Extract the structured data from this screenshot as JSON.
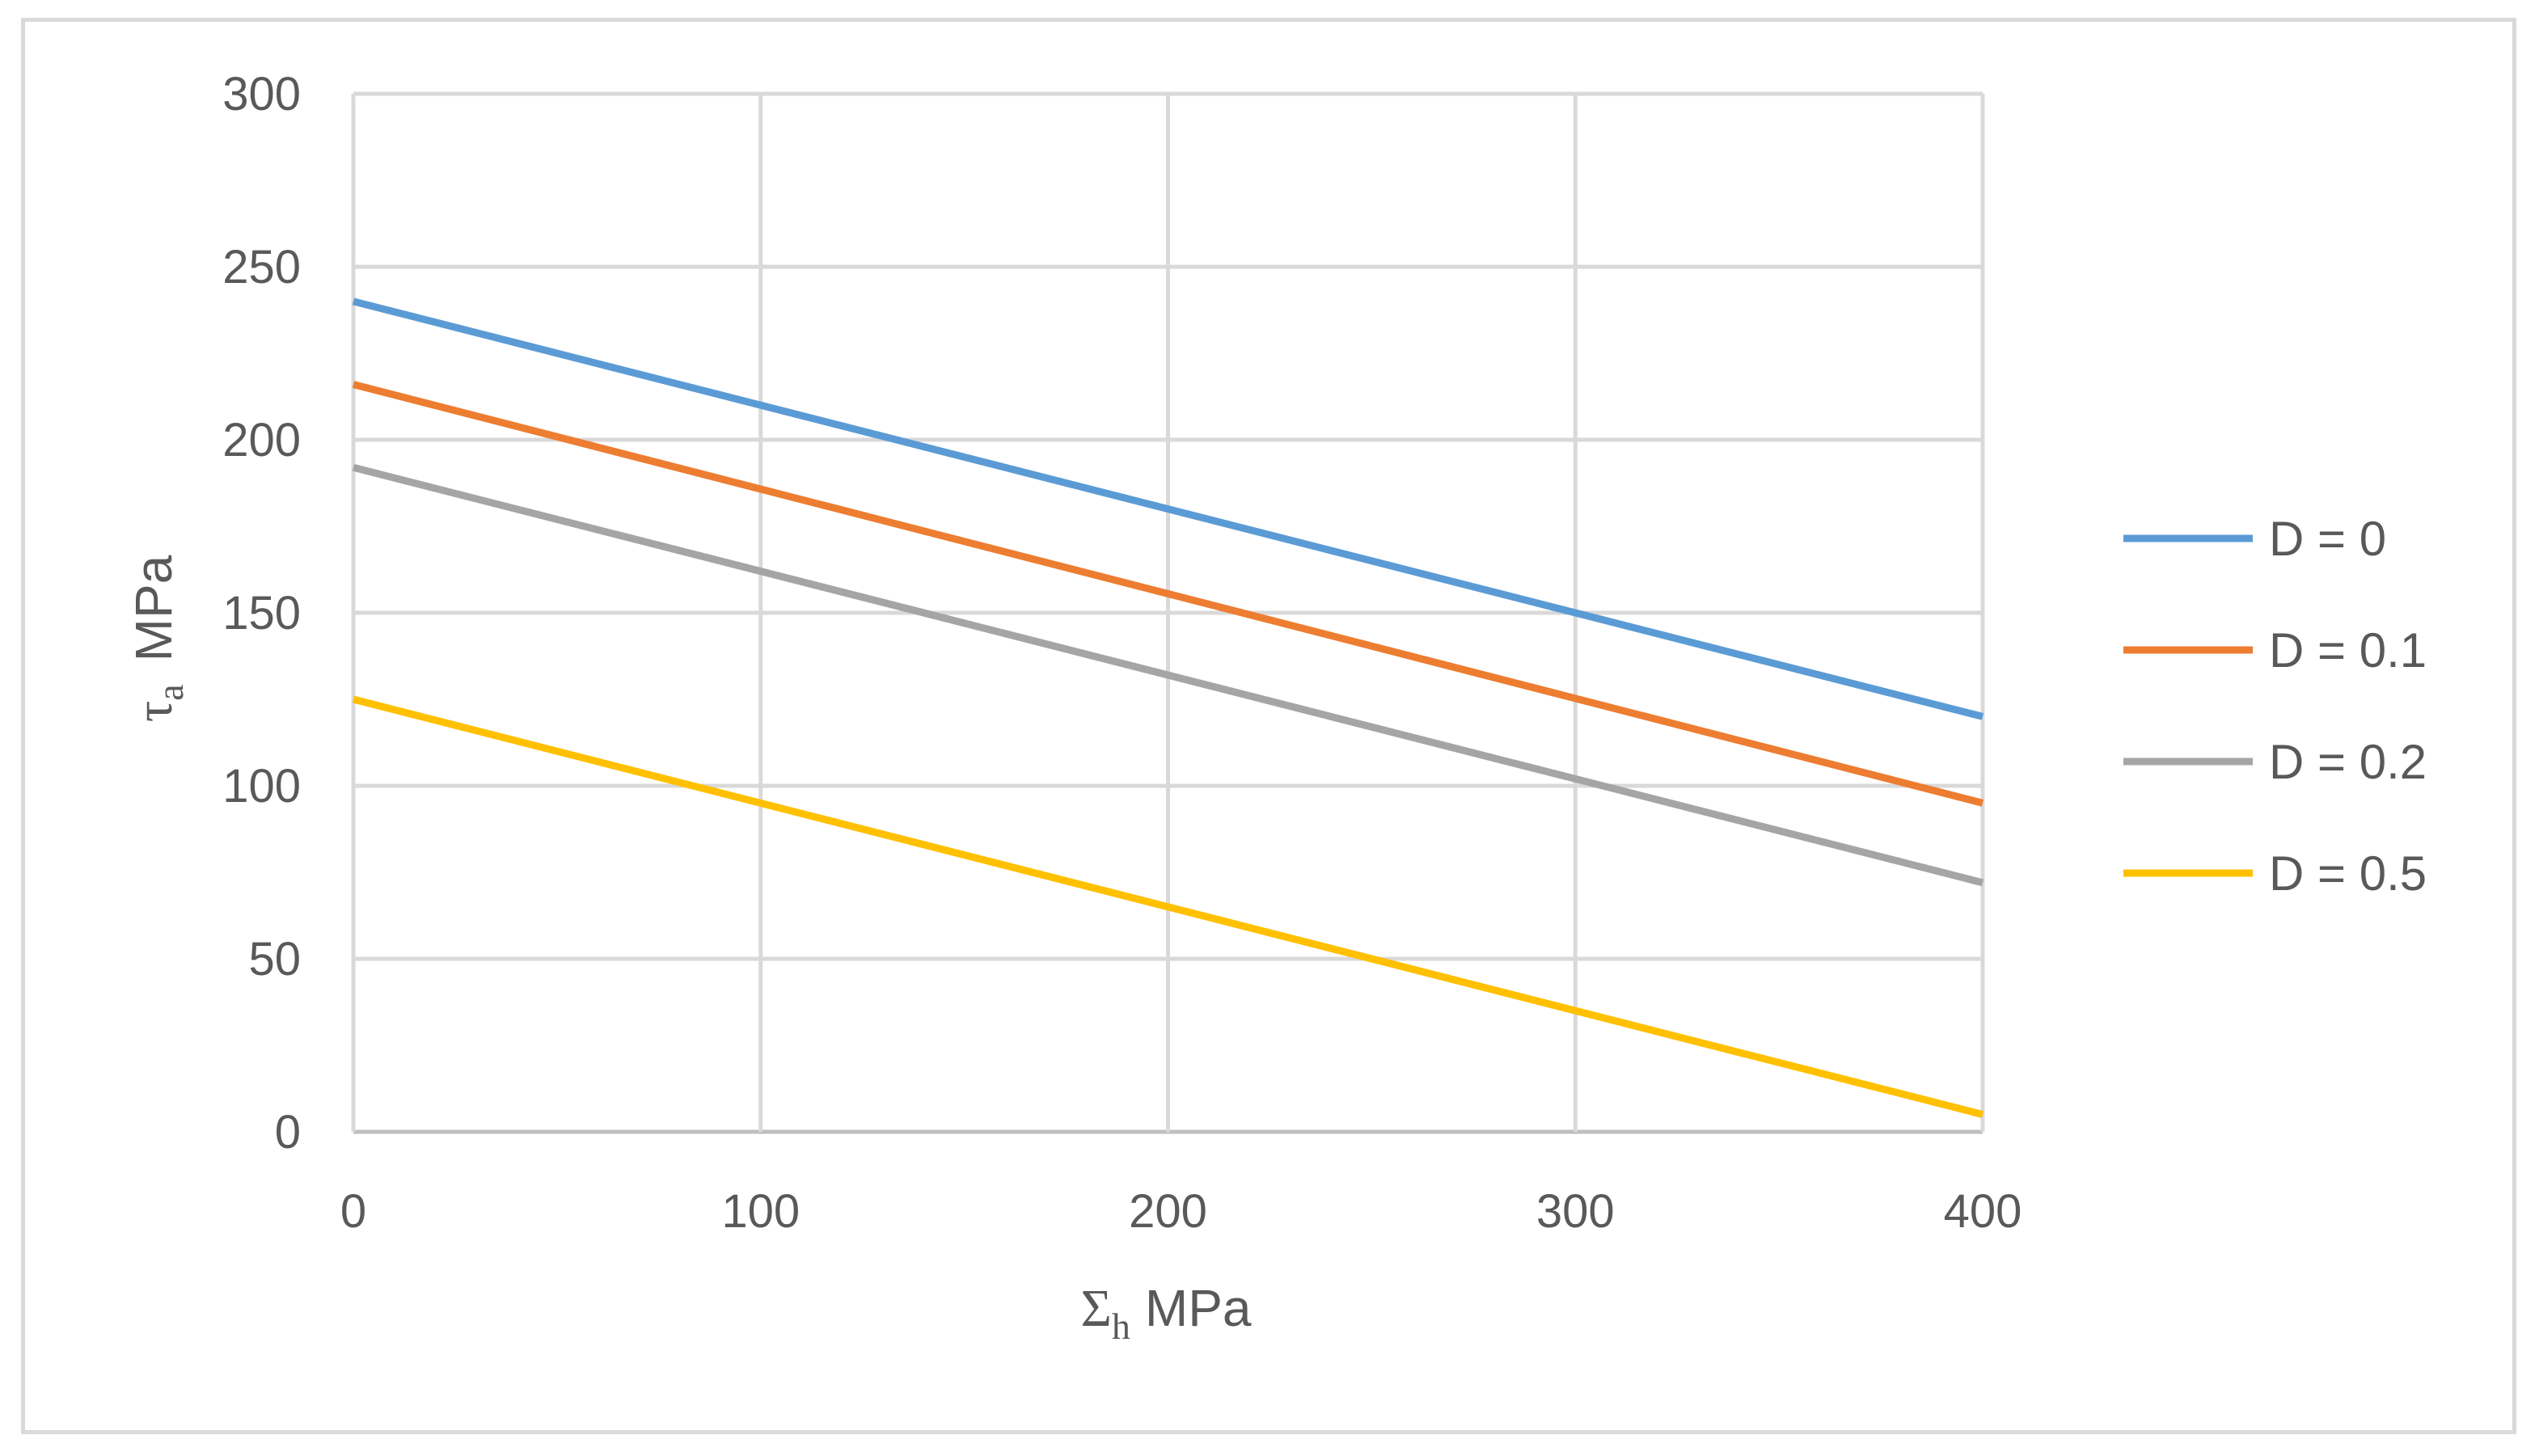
{
  "chart_data": {
    "type": "line",
    "title": "",
    "xlabel": "Σh MPa",
    "xlabel_parts": {
      "symbol": "Σ",
      "subscript": "h",
      "unit": "MPa"
    },
    "ylabel": "τa MPa",
    "ylabel_parts": {
      "symbol": "τ",
      "subscript": "a",
      "unit": "MPa"
    },
    "xlim": [
      0,
      400
    ],
    "ylim": [
      0,
      300
    ],
    "x_ticks": [
      0,
      100,
      200,
      300,
      400
    ],
    "y_ticks": [
      0,
      50,
      100,
      150,
      200,
      250,
      300
    ],
    "grid": true,
    "legend_position": "right",
    "series": [
      {
        "name": "D = 0",
        "color": "#5b9bd5",
        "x": [
          0,
          400
        ],
        "y": [
          240,
          120
        ]
      },
      {
        "name": "D = 0.1",
        "color": "#ed7d31",
        "x": [
          0,
          400
        ],
        "y": [
          216,
          95
        ]
      },
      {
        "name": "D = 0.2",
        "color": "#a5a5a5",
        "x": [
          0,
          400
        ],
        "y": [
          192,
          72
        ]
      },
      {
        "name": "D = 0.5",
        "color": "#ffc000",
        "x": [
          0,
          400
        ],
        "y": [
          125,
          5
        ]
      }
    ]
  }
}
